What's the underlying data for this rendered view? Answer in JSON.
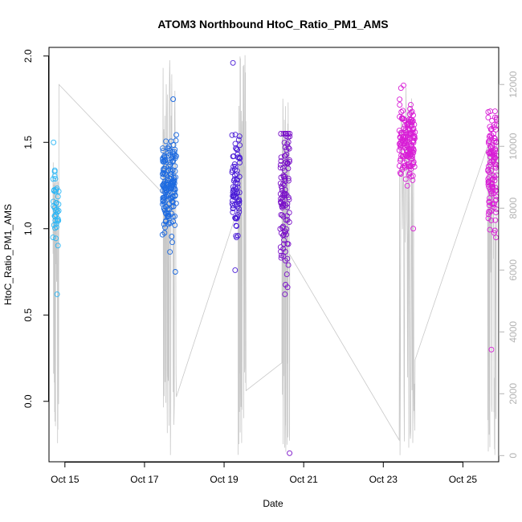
{
  "chart_data": {
    "type": "scatter",
    "title": "ATOM3 Northbound HtoC_Ratio_PM1_AMS",
    "xlabel": "Date",
    "ylabel": "HtoC_Ratio_PM1_AMS",
    "x_range_days": [
      14.6,
      25.9
    ],
    "ylim": [
      -0.35,
      2.05
    ],
    "yticks": [
      0.0,
      0.5,
      1.0,
      1.5,
      2.0
    ],
    "ytick_labels": [
      "0.0",
      "0.5",
      "1.0",
      "1.5",
      "2.0"
    ],
    "xticks": [
      15,
      17,
      19,
      21,
      23,
      25
    ],
    "xtick_labels": [
      "Oct 15",
      "Oct 17",
      "Oct 19",
      "Oct 21",
      "Oct 23",
      "Oct 25"
    ],
    "secondary_y": {
      "ylim": [
        -200,
        13200
      ],
      "ticks": [
        0,
        2000,
        4000,
        6000,
        8000,
        10000,
        12000
      ],
      "tick_labels": [
        "0",
        "2000",
        "4000",
        "6000",
        "8000",
        "10000",
        "12000"
      ],
      "color": "#b3b3b3"
    },
    "grid": false,
    "legend": "none",
    "point_color_gradient": [
      "#29b6f6",
      "#1e6be0",
      "#4a1cd6",
      "#7a10c8",
      "#d81ed6"
    ],
    "flights": [
      {
        "day_start": 14.7,
        "day_end": 14.85,
        "y_median": 1.1,
        "y_min": 0.62,
        "y_max": 1.5,
        "count": 38,
        "color": "#29b6f6",
        "alt_max": 9500
      },
      {
        "day_start": 17.45,
        "day_end": 17.8,
        "y_median": 1.25,
        "y_min": 0.75,
        "y_max": 1.75,
        "count": 170,
        "color": "#1e6be0",
        "alt_max": 12800
      },
      {
        "day_start": 19.2,
        "day_end": 19.4,
        "y_median": 1.25,
        "y_min": 0.76,
        "y_max": 1.96,
        "count": 80,
        "color": "#4a1cd6",
        "alt_max": 13000
      },
      {
        "day_start": 20.4,
        "day_end": 20.65,
        "y_median": 1.15,
        "y_min": -0.3,
        "y_max": 1.55,
        "count": 110,
        "color": "#7a10c8",
        "alt_max": 11800
      },
      {
        "day_start": 23.4,
        "day_end": 23.8,
        "y_median": 1.5,
        "y_min": 1.0,
        "y_max": 1.83,
        "count": 160,
        "color": "#d81ed6",
        "alt_max": 12000
      },
      {
        "day_start": 25.62,
        "day_end": 25.85,
        "y_median": 1.35,
        "y_min": 0.3,
        "y_max": 1.68,
        "count": 120,
        "color": "#d81ed6",
        "alt_max": 10500
      }
    ],
    "altitude_ferry_path": [
      [
        14.7,
        9000
      ],
      [
        14.85,
        12000
      ],
      [
        17.45,
        8500
      ],
      [
        17.8,
        1900
      ],
      [
        19.35,
        8000
      ],
      [
        19.55,
        2100
      ],
      [
        20.45,
        3000
      ],
      [
        20.65,
        6500
      ],
      [
        23.4,
        500
      ],
      [
        23.8,
        3100
      ],
      [
        25.62,
        10000
      ],
      [
        25.85,
        10200
      ]
    ]
  }
}
